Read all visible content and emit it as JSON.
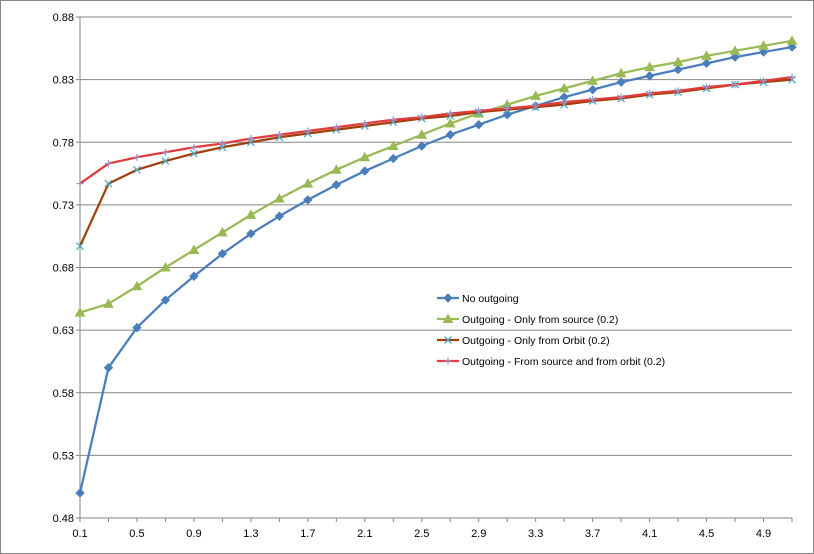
{
  "chart_data": {
    "type": "line",
    "title": "",
    "xlabel": "",
    "ylabel": "",
    "x": [
      0.1,
      0.3,
      0.5,
      0.7,
      0.9,
      1.1,
      1.3,
      1.5,
      1.7,
      1.9,
      2.1,
      2.3,
      2.5,
      2.7,
      2.9,
      3.1,
      3.3,
      3.5,
      3.7,
      3.9,
      4.1,
      4.3,
      4.5,
      4.7,
      4.9,
      5.1
    ],
    "x_tick_labels": [
      "0.1",
      "0.5",
      "0.9",
      "1.3",
      "1.7",
      "2.1",
      "2.5",
      "2.9",
      "3.3",
      "3.7",
      "4.1",
      "4.5",
      "4.9"
    ],
    "y_tick_labels": [
      "0.48",
      "0.53",
      "0.58",
      "0.63",
      "0.68",
      "0.73",
      "0.78",
      "0.83",
      "0.88"
    ],
    "ylim": [
      0.48,
      0.88
    ],
    "grid": "horizontal",
    "legend_position": "center-right",
    "series": [
      {
        "name": "No outgoing",
        "color": "#4a7ebb",
        "marker": "diamond",
        "values": [
          0.5,
          0.6,
          0.632,
          0.654,
          0.673,
          0.691,
          0.707,
          0.721,
          0.734,
          0.746,
          0.757,
          0.767,
          0.777,
          0.786,
          0.794,
          0.802,
          0.809,
          0.816,
          0.822,
          0.828,
          0.833,
          0.838,
          0.843,
          0.848,
          0.852,
          0.856
        ]
      },
      {
        "name": "Outgoing - Only from source (0.2)",
        "color": "#98b954",
        "marker": "triangle",
        "values": [
          0.644,
          0.651,
          0.665,
          0.68,
          0.694,
          0.708,
          0.722,
          0.735,
          0.747,
          0.758,
          0.768,
          0.777,
          0.786,
          0.795,
          0.803,
          0.81,
          0.817,
          0.823,
          0.829,
          0.835,
          0.84,
          0.844,
          0.849,
          0.853,
          0.857,
          0.861
        ]
      },
      {
        "name": "Outgoing - Only from Orbit (0.2)",
        "color": "#a0410d",
        "marker": "x",
        "values": [
          0.697,
          0.747,
          0.758,
          0.765,
          0.771,
          0.776,
          0.78,
          0.784,
          0.787,
          0.79,
          0.793,
          0.796,
          0.799,
          0.801,
          0.804,
          0.806,
          0.808,
          0.81,
          0.813,
          0.815,
          0.818,
          0.82,
          0.823,
          0.826,
          0.828,
          0.83
        ]
      },
      {
        "name": "Outgoing - From source and from orbit (0.2)",
        "color": "#e03a3a",
        "marker": "plus",
        "values": [
          0.747,
          0.763,
          0.768,
          0.772,
          0.776,
          0.779,
          0.783,
          0.786,
          0.789,
          0.792,
          0.795,
          0.798,
          0.8,
          0.803,
          0.805,
          0.807,
          0.809,
          0.812,
          0.814,
          0.816,
          0.819,
          0.821,
          0.824,
          0.826,
          0.829,
          0.832
        ]
      }
    ]
  }
}
